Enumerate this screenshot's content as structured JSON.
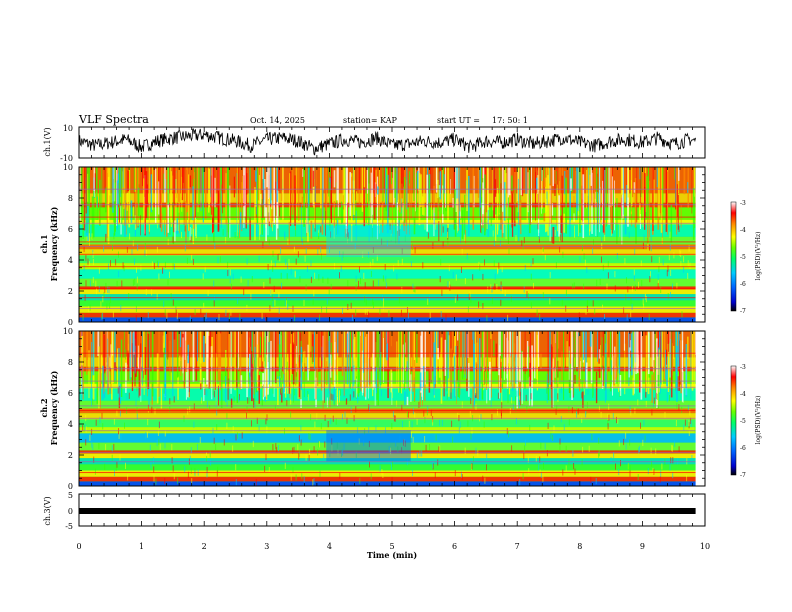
{
  "header": {
    "title": "VLF Spectra",
    "date": "Oct. 14, 2025",
    "station": "station= KAP",
    "start_label": "start  UT  =",
    "start_value": "17: 50: 1"
  },
  "colors": {
    "palette": [
      "#000000",
      "#0000cc",
      "#0066ff",
      "#00ccff",
      "#00ff99",
      "#33ff00",
      "#ccff00",
      "#ffff00",
      "#ff9900",
      "#ff0000",
      "#ff3333",
      "#ffffff"
    ],
    "spectrogram_fill": "#55dd33"
  },
  "chart_data": [
    {
      "type": "line",
      "name": "ch1-waveform",
      "ylabel": "ch.1(V)",
      "ylim": [
        -10,
        10
      ],
      "y_ticks": [
        "10",
        "-10"
      ],
      "x": [
        0,
        0.25,
        0.5,
        0.75,
        1.0,
        1.25,
        1.5,
        1.75,
        2.0,
        2.25,
        2.5,
        2.75,
        3.0,
        3.25,
        3.5,
        3.75,
        4.0,
        4.25,
        4.5,
        4.75,
        5.0,
        5.25,
        5.5,
        5.75,
        6.0,
        6.25,
        6.5,
        6.75,
        7.0,
        7.25,
        7.5,
        7.75,
        8.0,
        8.25,
        8.5,
        8.75,
        9.0,
        9.25,
        9.5,
        9.75,
        9.85
      ],
      "values": [
        1,
        -2,
        0,
        2,
        -3,
        1,
        3,
        4,
        5,
        3,
        1,
        -2,
        2,
        3,
        1,
        -4,
        -1,
        2,
        0,
        3,
        -2,
        -1,
        1,
        0,
        2,
        -3,
        1,
        0,
        2,
        -1,
        1,
        3,
        0,
        -2,
        1,
        2,
        0,
        3,
        -1,
        2,
        1
      ]
    },
    {
      "type": "heatmap",
      "name": "ch1-spectrogram",
      "ylabel_line1": "ch.1",
      "ylabel_line2": "Frequency (kHz)",
      "ylim": [
        0,
        10
      ],
      "y_ticks": [
        "0",
        "2",
        "4",
        "6",
        "8",
        "10"
      ],
      "colorbar": {
        "label": "log(PSD)(V²/Hz)",
        "range": [
          -7,
          -3
        ],
        "ticks": [
          "-3",
          "-4",
          "-5",
          "-6",
          "-7"
        ]
      }
    },
    {
      "type": "heatmap",
      "name": "ch2-spectrogram",
      "ylabel_line1": "ch.2",
      "ylabel_line2": "Frequency (kHz)",
      "ylim": [
        0,
        10
      ],
      "y_ticks": [
        "0",
        "2",
        "4",
        "6",
        "8",
        "10"
      ],
      "colorbar": {
        "label": "log(PSD)(V²/Hz)",
        "range": [
          -7,
          -3
        ],
        "ticks": [
          "-3",
          "-4",
          "-5",
          "-6",
          "-7"
        ]
      }
    },
    {
      "type": "line",
      "name": "ch3-waveform",
      "ylabel": "ch.3(V)",
      "ylim": [
        -5,
        5
      ],
      "y_ticks": [
        "5",
        "0",
        "-5"
      ],
      "x": [
        0,
        9.85
      ],
      "values": [
        0,
        0
      ]
    }
  ],
  "x_axis": {
    "xlabel": "Time  (min)",
    "xlim": [
      0,
      10
    ],
    "tick_labels": [
      "0",
      "1",
      "2",
      "3",
      "4",
      "5",
      "6",
      "7",
      "8",
      "9",
      "10"
    ]
  }
}
